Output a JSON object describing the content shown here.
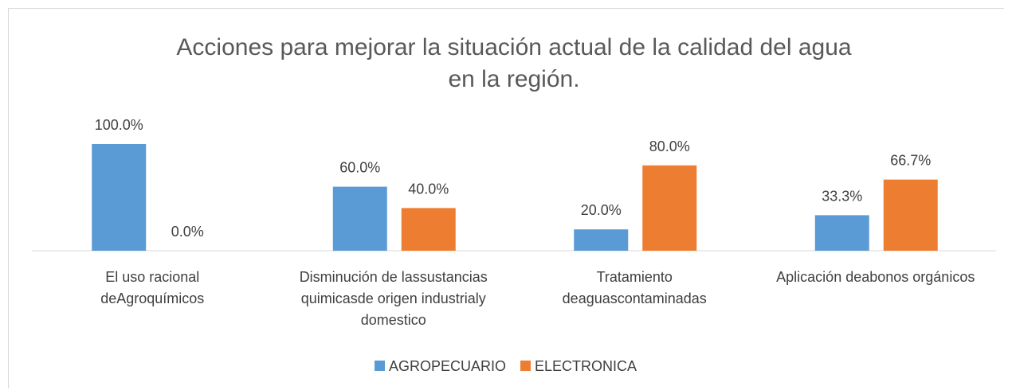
{
  "chart_data": {
    "type": "bar",
    "title": "Acciones para mejorar la situación actual de la calidad del agua\nen la región.",
    "categories": [
      "El uso racional\ndeAgroquímicos",
      "Disminución de lassustancias\nquimicasde origen industrialy\ndomestico",
      "Tratamiento\ndeaguascontaminadas",
      "Aplicación deabonos orgánicos"
    ],
    "series": [
      {
        "name": "AGROPECUARIO",
        "color": "#5b9bd5",
        "values": [
          100,
          60,
          20,
          33.3
        ],
        "value_labels": [
          "100.0%",
          "60.0%",
          "20.0%",
          "33.3%"
        ]
      },
      {
        "name": "ELECTRONICA",
        "color": "#ed7d31",
        "values": [
          0,
          40,
          80,
          66.7
        ],
        "value_labels": [
          "0.0%",
          "40.0%",
          "80.0%",
          "66.7%"
        ]
      }
    ],
    "ylim": [
      0,
      100
    ],
    "legend": "bottom"
  }
}
